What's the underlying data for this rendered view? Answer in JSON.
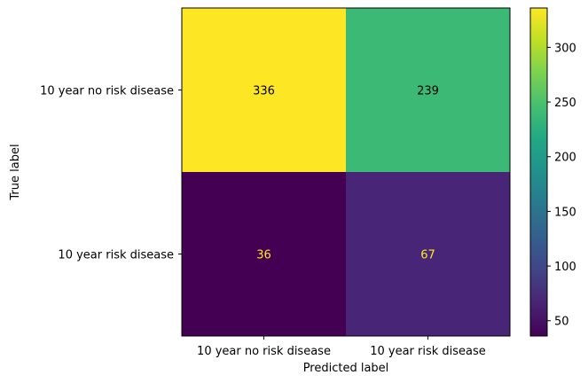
{
  "chart_data": {
    "type": "heatmap",
    "title": "",
    "xlabel": "Predicted label",
    "ylabel": "True label",
    "x_categories": [
      "10 year no risk disease",
      "10 year risk disease"
    ],
    "y_categories": [
      "10 year no risk disease",
      "10 year risk disease"
    ],
    "matrix": [
      [
        336,
        239
      ],
      [
        36,
        67
      ]
    ],
    "colormap": "viridis",
    "colorbar": {
      "range": [
        36,
        336
      ],
      "ticks": [
        50,
        100,
        150,
        200,
        250,
        300
      ]
    },
    "colors": {
      "text_dark": "#000000",
      "text_light": "#fde725"
    }
  }
}
